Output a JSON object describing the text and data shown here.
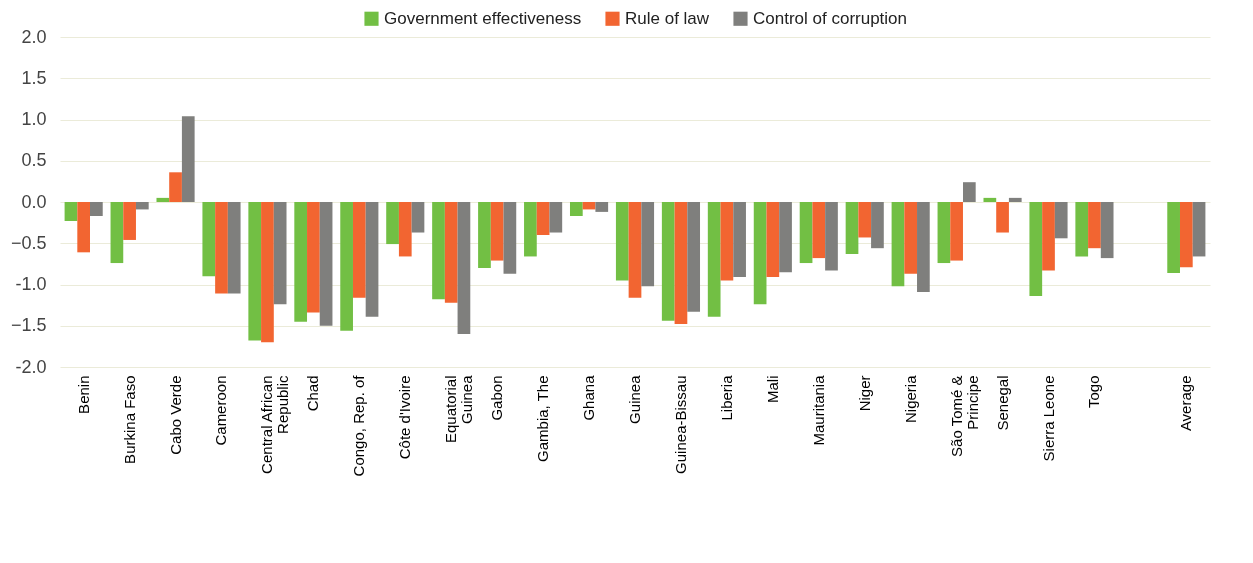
{
  "chart_data": {
    "type": "bar",
    "categories": [
      "Benin",
      "Burkina Faso",
      "Cabo Verde",
      "Cameroon",
      "Central African Republic",
      "Chad",
      "Congo, Rep. of",
      "Côte d'Ivoire",
      "Equatorial Guinea",
      "Gabon",
      "Gambia, The",
      "Ghana",
      "Guinea",
      "Guinea-Bissau",
      "Liberia",
      "Mali",
      "Mauritania",
      "Niger",
      "Nigeria",
      "São Tomé & Principe",
      "Senegal",
      "Sierra Leone",
      "Togo",
      null,
      "Average"
    ],
    "series": [
      {
        "name": "Government effectiveness",
        "color": "#72bf44",
        "values": [
          -0.23,
          -0.74,
          0.05,
          -0.9,
          -1.68,
          -1.45,
          -1.56,
          -0.51,
          -1.18,
          -0.8,
          -0.66,
          -0.17,
          -0.95,
          -1.44,
          -1.39,
          -1.24,
          -0.74,
          -0.63,
          -1.02,
          -0.74,
          0.05,
          -1.14,
          -0.66,
          null,
          -0.86
        ]
      },
      {
        "name": "Rule of law",
        "color": "#f26531",
        "values": [
          -0.61,
          -0.46,
          0.36,
          -1.11,
          -1.7,
          -1.34,
          -1.16,
          -0.66,
          -1.22,
          -0.71,
          -0.4,
          -0.09,
          -1.16,
          -1.48,
          -0.95,
          -0.91,
          -0.68,
          -0.43,
          -0.87,
          -0.71,
          -0.37,
          -0.83,
          -0.56,
          null,
          -0.79
        ]
      },
      {
        "name": "Control of corruption",
        "color": "#7f7f7d",
        "values": [
          -0.17,
          -0.09,
          1.04,
          -1.11,
          -1.24,
          -1.5,
          -1.39,
          -0.37,
          -1.6,
          -0.87,
          -0.37,
          -0.12,
          -1.02,
          -1.33,
          -0.91,
          -0.85,
          -0.83,
          -0.56,
          -1.09,
          0.24,
          0.05,
          -0.44,
          -0.68,
          null,
          -0.66
        ]
      }
    ],
    "ylim": [
      -2,
      2
    ],
    "yticks": [
      {
        "value": -2,
        "label": "-2.0"
      },
      -1.5,
      {
        "value": -1,
        "label": "-1.0"
      },
      -0.5,
      {
        "value": 0,
        "label": "0.0"
      },
      0.5,
      {
        "value": 1,
        "label": "1.0"
      },
      1.5,
      {
        "value": 2,
        "label": "2.0"
      }
    ],
    "grid": "y",
    "legend": "top"
  }
}
